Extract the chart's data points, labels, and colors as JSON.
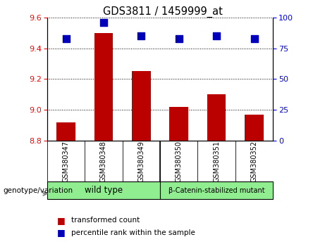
{
  "title": "GDS3811 / 1459999_at",
  "samples": [
    "GSM380347",
    "GSM380348",
    "GSM380349",
    "GSM380350",
    "GSM380351",
    "GSM380352"
  ],
  "transformed_count": [
    8.92,
    9.5,
    9.25,
    9.02,
    9.1,
    8.97
  ],
  "percentile_rank": [
    83,
    96,
    85,
    83,
    85,
    83
  ],
  "ylim_left": [
    8.8,
    9.6
  ],
  "ylim_right": [
    0,
    100
  ],
  "yticks_left": [
    8.8,
    9.0,
    9.2,
    9.4,
    9.6
  ],
  "yticks_right": [
    0,
    25,
    50,
    75,
    100
  ],
  "bar_color": "#BB0000",
  "dot_color": "#0000BB",
  "bar_width": 0.5,
  "dot_size": 45,
  "background_color": "#ffffff",
  "tick_label_bg": "#cccccc",
  "legend_labels": [
    "transformed count",
    "percentile rank within the sample"
  ],
  "legend_colors": [
    "#BB0000",
    "#0000BB"
  ],
  "genotype_label": "genotype/variation",
  "group1_label": "wild type",
  "group2_label": "β-Catenin-stabilized mutant",
  "group1_color": "#90EE90",
  "group2_color": "#90EE90",
  "separator_col": 2.5
}
